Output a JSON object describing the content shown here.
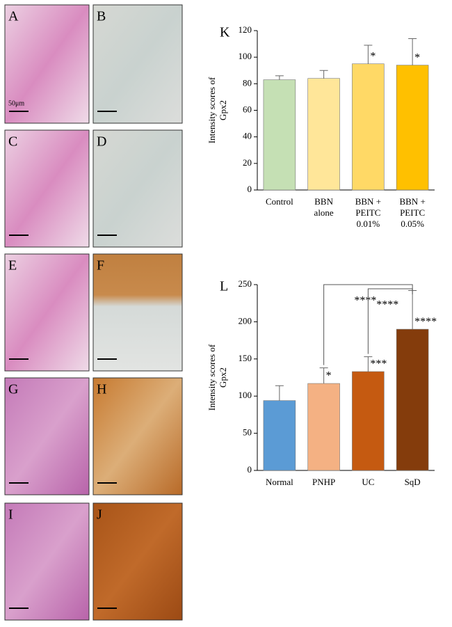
{
  "panels": {
    "labels": [
      "A",
      "B",
      "C",
      "D",
      "E",
      "F",
      "G",
      "H",
      "I",
      "J"
    ],
    "scale_label": "50μm"
  },
  "chart_data": [
    {
      "type": "bar",
      "title": "K",
      "ylabel": [
        "Intensity  scores of",
        "Gpx2"
      ],
      "categories": [
        "Control",
        "BBN\nalone",
        "BBN +\nPEITC\n0.01%",
        "BBN +\nPEITC\n0.05%"
      ],
      "values": [
        83,
        84,
        95,
        94
      ],
      "errors": [
        3,
        6,
        14,
        20
      ],
      "colors": [
        "#c5e0b4",
        "#ffe699",
        "#ffd966",
        "#ffc000"
      ],
      "annotations": [
        null,
        null,
        "*",
        "*"
      ],
      "ylim": [
        0,
        120
      ],
      "yticks": [
        0,
        20,
        40,
        60,
        80,
        100,
        120
      ]
    },
    {
      "type": "bar",
      "title": "L",
      "ylabel": [
        "Intensity  scores of",
        "Gpx2"
      ],
      "categories": [
        "Normal",
        "PNHP",
        "UC",
        "SqD"
      ],
      "values": [
        94,
        117,
        133,
        190
      ],
      "errors": [
        20,
        21,
        20,
        52
      ],
      "colors": [
        "#5b9bd5",
        "#f4b183",
        "#c55a11",
        "#843c0c"
      ],
      "annotations": [
        null,
        "*",
        "***",
        "****"
      ],
      "brackets": [
        {
          "between": [
            1,
            3
          ],
          "label": "****"
        },
        {
          "between": [
            2,
            3
          ],
          "label": "****"
        }
      ],
      "ylim": [
        0,
        250
      ],
      "yticks": [
        0,
        50,
        100,
        150,
        200,
        250
      ]
    }
  ]
}
